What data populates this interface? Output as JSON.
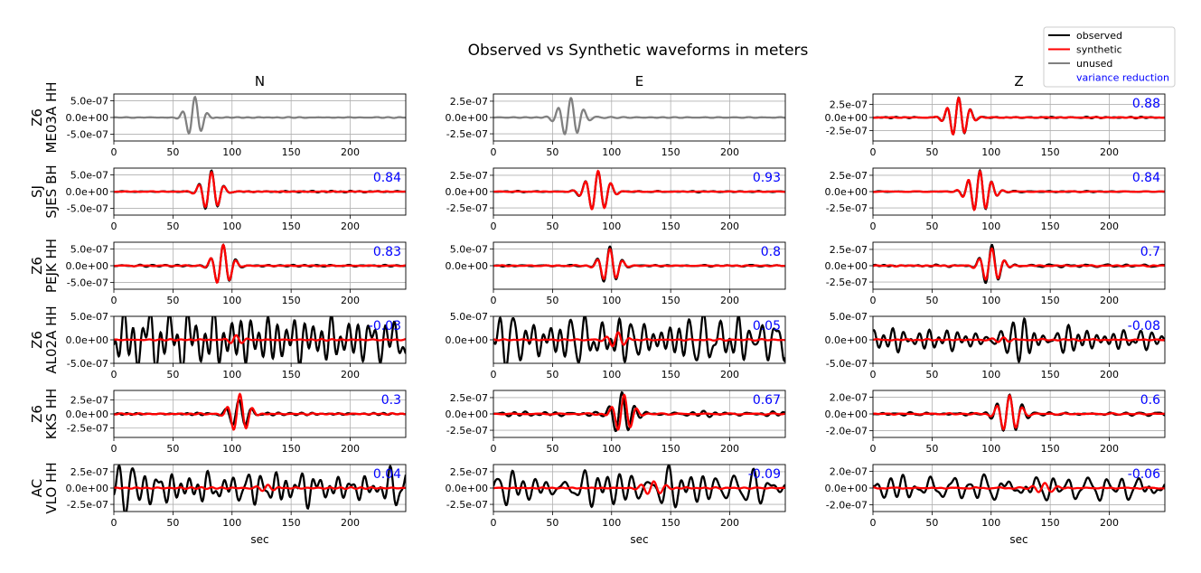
{
  "figure": {
    "title": "Observed vs Synthetic waveforms in meters",
    "xlabel": "sec",
    "components": [
      "N",
      "E",
      "Z"
    ]
  },
  "legend": {
    "placement": "top-right",
    "entries": [
      {
        "label": "observed",
        "color": "#000000"
      },
      {
        "label": "synthetic",
        "color": "#ff0000"
      },
      {
        "label": "unused",
        "color": "#808080"
      },
      {
        "label": "variance reduction",
        "color": "#0000ff",
        "text_only": true
      }
    ]
  },
  "colors": {
    "observed": "#000000",
    "synthetic": "#ff0000",
    "unused": "#808080",
    "vr": "#0000ff",
    "grid": "#b0b0b0"
  },
  "chart_data": {
    "type": "line",
    "x_range": [
      0,
      247
    ],
    "x_ticks": [
      0,
      50,
      100,
      150,
      200
    ],
    "x_tick_labels": [
      "0",
      "50",
      "100",
      "150",
      "200"
    ],
    "grid": true,
    "rows": [
      {
        "network": "Z6",
        "station": "ME03A HH",
        "panels": [
          {
            "component": "N",
            "unused": true,
            "vr": "",
            "ylim": [
              -7e-07,
              7e-07
            ],
            "yticks": [
              5e-07,
              0,
              -5e-07
            ],
            "ytick_labels": [
              "5.0e-07",
              "0.0e+00",
              "-5.0e-07"
            ],
            "observed": {
              "noise": 0.012,
              "seed": 1,
              "packets": [
                {
                  "t": 68,
                  "a": 0.9,
                  "p": 11,
                  "w": 9
                }
              ]
            },
            "synthetic": null
          },
          {
            "component": "E",
            "unused": true,
            "vr": "",
            "ylim": [
              -3.6e-07,
              3.6e-07
            ],
            "yticks": [
              2.5e-07,
              0,
              -2.5e-07
            ],
            "ytick_labels": [
              "2.5e-07",
              "0.0e+00",
              "-2.5e-07"
            ],
            "observed": {
              "noise": 0.015,
              "seed": 2,
              "packets": [
                {
                  "t": 65,
                  "a": 0.85,
                  "p": 11,
                  "w": 12
                }
              ]
            },
            "synthetic": null
          },
          {
            "component": "Z",
            "unused": false,
            "vr": "0.88",
            "ylim": [
              -4.5e-07,
              4.5e-07
            ],
            "yticks": [
              2.5e-07,
              0,
              -2.5e-07
            ],
            "ytick_labels": [
              "2.5e-07",
              "0.0e+00",
              "-2.5e-07"
            ],
            "observed": {
              "noise": 0.02,
              "seed": 3,
              "packets": [
                {
                  "t": 72,
                  "a": 0.85,
                  "p": 10,
                  "w": 11
                }
              ]
            },
            "synthetic": {
              "noise": 0.01,
              "seed": 4,
              "packets": [
                {
                  "t": 72,
                  "a": 0.85,
                  "p": 10,
                  "w": 11
                }
              ]
            }
          }
        ]
      },
      {
        "network": "SJ",
        "station": "SJES BH",
        "panels": [
          {
            "component": "N",
            "unused": false,
            "vr": "0.84",
            "ylim": [
              -7e-07,
              7e-07
            ],
            "yticks": [
              5e-07,
              0,
              -5e-07
            ],
            "ytick_labels": [
              "5.0e-07",
              "0.0e+00",
              "-5.0e-07"
            ],
            "observed": {
              "noise": 0.02,
              "seed": 5,
              "packets": [
                {
                  "t": 82,
                  "a": 0.9,
                  "p": 11,
                  "w": 10
                }
              ]
            },
            "synthetic": {
              "noise": 0.01,
              "seed": 6,
              "packets": [
                {
                  "t": 82,
                  "a": 0.85,
                  "p": 11,
                  "w": 10
                }
              ]
            }
          },
          {
            "component": "E",
            "unused": false,
            "vr": "0.93",
            "ylim": [
              -3.6e-07,
              3.6e-07
            ],
            "yticks": [
              2.5e-07,
              0,
              -2.5e-07
            ],
            "ytick_labels": [
              "2.5e-07",
              "0.0e+00",
              "-2.5e-07"
            ],
            "observed": {
              "noise": 0.02,
              "seed": 7,
              "packets": [
                {
                  "t": 88,
                  "a": 0.9,
                  "p": 11,
                  "w": 12
                }
              ]
            },
            "synthetic": {
              "noise": 0.01,
              "seed": 8,
              "packets": [
                {
                  "t": 88,
                  "a": 0.9,
                  "p": 11,
                  "w": 12
                }
              ]
            }
          },
          {
            "component": "Z",
            "unused": false,
            "vr": "0.84",
            "ylim": [
              -3.6e-07,
              3.6e-07
            ],
            "yticks": [
              2.5e-07,
              0,
              -2.5e-07
            ],
            "ytick_labels": [
              "2.5e-07",
              "0.0e+00",
              "-2.5e-07"
            ],
            "observed": {
              "noise": 0.02,
              "seed": 9,
              "packets": [
                {
                  "t": 90,
                  "a": 0.9,
                  "p": 10,
                  "w": 12
                }
              ]
            },
            "synthetic": {
              "noise": 0.01,
              "seed": 10,
              "packets": [
                {
                  "t": 90,
                  "a": 0.9,
                  "p": 10,
                  "w": 12
                }
              ]
            }
          }
        ]
      },
      {
        "network": "Z6",
        "station": "PEJK HH",
        "panels": [
          {
            "component": "N",
            "unused": false,
            "vr": "0.83",
            "ylim": [
              -7e-07,
              7e-07
            ],
            "yticks": [
              5e-07,
              0,
              -5e-07
            ],
            "ytick_labels": [
              "5.0e-07",
              "0.0e+00",
              "-5.0e-07"
            ],
            "observed": {
              "noise": 0.03,
              "seed": 11,
              "packets": [
                {
                  "t": 92,
                  "a": 0.9,
                  "p": 11,
                  "w": 10
                }
              ]
            },
            "synthetic": {
              "noise": 0.015,
              "seed": 12,
              "packets": [
                {
                  "t": 92,
                  "a": 0.9,
                  "p": 11,
                  "w": 10
                }
              ]
            }
          },
          {
            "component": "E",
            "unused": false,
            "vr": "0.8",
            "ylim": [
              -7e-07,
              7e-07
            ],
            "yticks": [
              5e-07,
              0
            ],
            "ytick_labels": [
              "5.0e-07",
              "0.0e+00"
            ],
            "observed": {
              "noise": 0.025,
              "seed": 13,
              "packets": [
                {
                  "t": 98,
                  "a": 0.85,
                  "p": 11,
                  "w": 10
                }
              ]
            },
            "synthetic": {
              "noise": 0.015,
              "seed": 14,
              "packets": [
                {
                  "t": 98,
                  "a": 0.75,
                  "p": 11,
                  "w": 10
                }
              ]
            }
          },
          {
            "component": "Z",
            "unused": false,
            "vr": "0.7",
            "ylim": [
              -3.6e-07,
              3.6e-07
            ],
            "yticks": [
              2.5e-07,
              0,
              -2.5e-07
            ],
            "ytick_labels": [
              "2.5e-07",
              "0.0e+00",
              "-2.5e-07"
            ],
            "observed": {
              "noise": 0.04,
              "seed": 15,
              "packets": [
                {
                  "t": 100,
                  "a": 0.9,
                  "p": 11,
                  "w": 10
                }
              ]
            },
            "synthetic": {
              "noise": 0.02,
              "seed": 16,
              "packets": [
                {
                  "t": 100,
                  "a": 0.75,
                  "p": 11,
                  "w": 10
                }
              ]
            }
          }
        ]
      },
      {
        "network": "Z6",
        "station": "AL02A HH",
        "panels": [
          {
            "component": "N",
            "unused": false,
            "vr": "-0.03",
            "ylim": [
              -5e-07,
              5e-07
            ],
            "yticks": [
              5e-07,
              0,
              -5e-07
            ],
            "ytick_labels": [
              "5.0e-07",
              "0.0e+00",
              "-5.0e-07"
            ],
            "observed": {
              "noise": 0.9,
              "seed": 17,
              "packets": []
            },
            "synthetic": {
              "noise": 0.02,
              "seed": 18,
              "packets": [
                {
                  "t": 103,
                  "a": 0.18,
                  "p": 10,
                  "w": 8
                }
              ]
            }
          },
          {
            "component": "E",
            "unused": false,
            "vr": "0.05",
            "ylim": [
              -5e-07,
              5e-07
            ],
            "yticks": [
              5e-07,
              0
            ],
            "ytick_labels": [
              "5.0e-07",
              "0.0e+00"
            ],
            "observed": {
              "noise": 0.75,
              "seed": 19,
              "packets": []
            },
            "synthetic": {
              "noise": 0.02,
              "seed": 20,
              "packets": [
                {
                  "t": 105,
                  "a": 0.3,
                  "p": 10,
                  "w": 9
                }
              ]
            }
          },
          {
            "component": "Z",
            "unused": false,
            "vr": "-0.08",
            "ylim": [
              -5e-07,
              5e-07
            ],
            "yticks": [
              5e-07,
              0,
              -5e-07
            ],
            "ytick_labels": [
              "5.0e-07",
              "0.0e+00",
              "-5.0e-07"
            ],
            "observed": {
              "noise": 0.35,
              "seed": 21,
              "packets": [
                {
                  "t": 128,
                  "a": 0.9,
                  "p": 10,
                  "w": 9
                }
              ]
            },
            "synthetic": {
              "noise": 0.02,
              "seed": 22,
              "packets": [
                {
                  "t": 110,
                  "a": 0.12,
                  "p": 10,
                  "w": 10
                }
              ]
            }
          }
        ]
      },
      {
        "network": "Z6",
        "station": "KKS HH",
        "panels": [
          {
            "component": "N",
            "unused": false,
            "vr": "0.3",
            "ylim": [
              -4.2e-07,
              4.2e-07
            ],
            "yticks": [
              2.5e-07,
              0,
              -2.5e-07
            ],
            "ytick_labels": [
              "2.5e-07",
              "0.0e+00",
              "-2.5e-07"
            ],
            "observed": {
              "noise": 0.04,
              "seed": 23,
              "packets": [
                {
                  "t": 105,
                  "a": 0.65,
                  "p": 11,
                  "w": 11
                }
              ]
            },
            "synthetic": {
              "noise": 0.02,
              "seed": 24,
              "packets": [
                {
                  "t": 106,
                  "a": 0.85,
                  "p": 11,
                  "w": 10
                }
              ]
            }
          },
          {
            "component": "E",
            "unused": false,
            "vr": "0.67",
            "ylim": [
              -3.6e-07,
              3.6e-07
            ],
            "yticks": [
              2.5e-07,
              0,
              -2.5e-07
            ],
            "ytick_labels": [
              "2.5e-07",
              "0.0e+00",
              "-2.5e-07"
            ],
            "observed": {
              "noise": 0.07,
              "seed": 25,
              "packets": [
                {
                  "t": 108,
                  "a": 0.9,
                  "p": 11,
                  "w": 11
                }
              ]
            },
            "synthetic": {
              "noise": 0.02,
              "seed": 26,
              "packets": [
                {
                  "t": 110,
                  "a": 0.85,
                  "p": 11,
                  "w": 10
                }
              ]
            }
          },
          {
            "component": "Z",
            "unused": false,
            "vr": "0.6",
            "ylim": [
              -2.8e-07,
              2.8e-07
            ],
            "yticks": [
              2e-07,
              0,
              -2e-07
            ],
            "ytick_labels": [
              "2.0e-07",
              "0.0e+00",
              "-2.0e-07"
            ],
            "observed": {
              "noise": 0.06,
              "seed": 27,
              "packets": [
                {
                  "t": 115,
                  "a": 0.9,
                  "p": 11,
                  "w": 12
                }
              ]
            },
            "synthetic": {
              "noise": 0.02,
              "seed": 28,
              "packets": [
                {
                  "t": 115,
                  "a": 0.8,
                  "p": 11,
                  "w": 11
                }
              ]
            }
          }
        ]
      },
      {
        "network": "AC",
        "station": "VLO HH",
        "panels": [
          {
            "component": "N",
            "unused": false,
            "vr": "0.04",
            "ylim": [
              -3.6e-07,
              3.6e-07
            ],
            "yticks": [
              2.5e-07,
              0,
              -2.5e-07
            ],
            "ytick_labels": [
              "2.5e-07",
              "0.0e+00",
              "-2.5e-07"
            ],
            "observed": {
              "noise": 0.5,
              "seed": 29,
              "packets": [
                {
                  "t": 15,
                  "a": 0.8,
                  "p": 12,
                  "w": 8
                }
              ]
            },
            "synthetic": {
              "noise": 0.02,
              "seed": 30,
              "packets": [
                {
                  "t": 130,
                  "a": 0.15,
                  "p": 10,
                  "w": 10
                }
              ]
            }
          },
          {
            "component": "E",
            "unused": false,
            "vr": "-0.09",
            "ylim": [
              -3.6e-07,
              3.6e-07
            ],
            "yticks": [
              2.5e-07,
              0,
              -2.5e-07
            ],
            "ytick_labels": [
              "2.5e-07",
              "0.0e+00",
              "-2.5e-07"
            ],
            "observed": {
              "noise": 0.55,
              "seed": 31,
              "packets": [
                {
                  "t": 15,
                  "a": 0.8,
                  "p": 12,
                  "w": 8
                }
              ]
            },
            "synthetic": {
              "noise": 0.02,
              "seed": 32,
              "packets": [
                {
                  "t": 135,
                  "a": 0.3,
                  "p": 11,
                  "w": 12
                }
              ]
            }
          },
          {
            "component": "Z",
            "unused": false,
            "vr": "-0.06",
            "ylim": [
              -2.8e-07,
              2.8e-07
            ],
            "yticks": [
              2e-07,
              0,
              -2e-07
            ],
            "ytick_labels": [
              "2.0e-07",
              "0.0e+00",
              "-2.0e-07"
            ],
            "observed": {
              "noise": 0.45,
              "seed": 33,
              "packets": [
                {
                  "t": 15,
                  "a": 0.85,
                  "p": 12,
                  "w": 8
                }
              ]
            },
            "synthetic": {
              "noise": 0.02,
              "seed": 34,
              "packets": [
                {
                  "t": 145,
                  "a": 0.2,
                  "p": 11,
                  "w": 12
                }
              ]
            }
          }
        ]
      }
    ]
  }
}
